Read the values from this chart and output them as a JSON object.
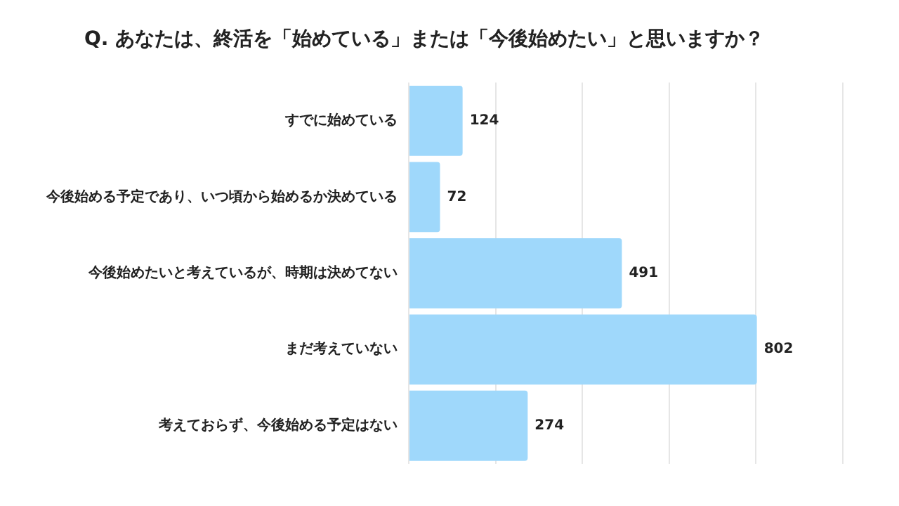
{
  "chart_data": {
    "type": "bar",
    "orientation": "horizontal",
    "title": "Q. あなたは、終活を「始めている」または「今後始めたい」と思いますか？",
    "categories": [
      "すでに始めている",
      "今後始める予定であり、いつ頃から始めるか決めている",
      "今後始めたいと考えているが、時期は決めてない",
      "まだ考えていない",
      "考えておらず、今後始める予定はない"
    ],
    "values": [
      124,
      72,
      491,
      802,
      274
    ],
    "color": "#9fd8fb",
    "grid": "x",
    "tick_labels": "y",
    "data_labels": true,
    "legend": false
  }
}
